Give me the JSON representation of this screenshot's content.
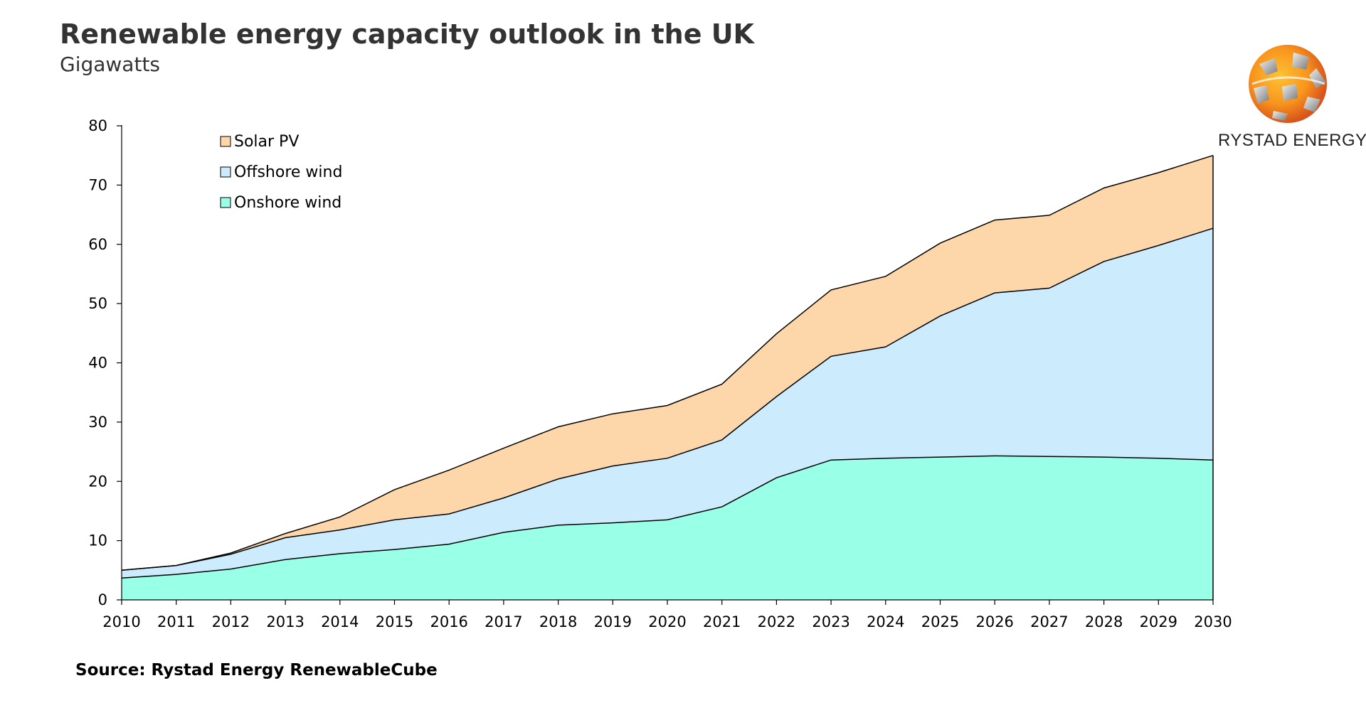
{
  "header": {
    "title": "Renewable energy capacity outlook in the UK",
    "subtitle": "Gigawatts"
  },
  "footer": {
    "source": "Source: Rystad Energy RenewableCube"
  },
  "logo": {
    "text": "RYSTAD ENERGY",
    "icon": "globe-logo-icon"
  },
  "colors": {
    "onshore": "#99FFE6",
    "offshore": "#CCEBFC",
    "solar": "#FDD7AA",
    "line": "#000000"
  },
  "chart_data": {
    "type": "area",
    "stacked": true,
    "title": "Renewable energy capacity outlook in the UK",
    "subtitle": "Gigawatts",
    "xlabel": "",
    "ylabel": "",
    "ylim": [
      0,
      80
    ],
    "yticks": [
      0,
      10,
      20,
      30,
      40,
      50,
      60,
      70,
      80
    ],
    "categories": [
      "2010",
      "2011",
      "2012",
      "2013",
      "2014",
      "2015",
      "2016",
      "2017",
      "2018",
      "2019",
      "2020",
      "2021",
      "2022",
      "2023",
      "2024",
      "2025",
      "2026",
      "2027",
      "2028",
      "2029",
      "2030"
    ],
    "legend_position": "top-left",
    "series": [
      {
        "name": "Onshore wind",
        "key": "onshore",
        "values": [
          3.7,
          4.3,
          5.2,
          6.8,
          7.8,
          8.5,
          9.4,
          11.4,
          12.6,
          13.0,
          13.5,
          15.7,
          20.6,
          23.6,
          23.9,
          24.1,
          24.3,
          24.2,
          24.1,
          23.9,
          23.6
        ]
      },
      {
        "name": "Offshore wind",
        "key": "offshore",
        "values": [
          1.3,
          1.5,
          2.5,
          3.7,
          4.0,
          5.0,
          5.1,
          5.8,
          7.8,
          9.6,
          10.4,
          11.3,
          13.7,
          17.5,
          18.8,
          23.8,
          27.5,
          28.4,
          33.0,
          35.9,
          39.1
        ]
      },
      {
        "name": "Solar PV",
        "key": "solar",
        "values": [
          0.0,
          0.0,
          0.2,
          0.7,
          2.2,
          5.1,
          7.4,
          8.4,
          8.8,
          8.8,
          8.9,
          9.4,
          10.6,
          11.2,
          11.9,
          12.3,
          12.3,
          12.3,
          12.4,
          12.3,
          12.3
        ]
      }
    ],
    "legend_order": [
      "Solar PV",
      "Offshore wind",
      "Onshore wind"
    ]
  }
}
